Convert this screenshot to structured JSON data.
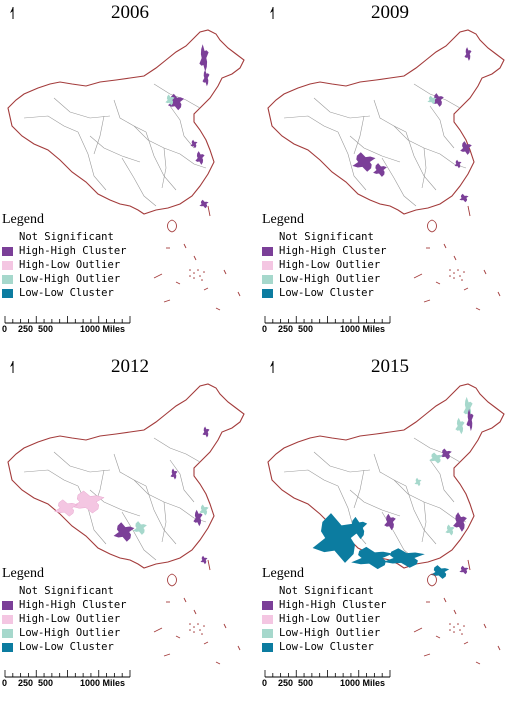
{
  "panels": [
    {
      "year": "2006"
    },
    {
      "year": "2009"
    },
    {
      "year": "2012"
    },
    {
      "year": "2015"
    }
  ],
  "north_label": "N",
  "legend": {
    "title": "Legend",
    "items": [
      {
        "label": "Not Significant",
        "color": "#ffffff"
      },
      {
        "label": "High-High Cluster",
        "color": "#7b3f98"
      },
      {
        "label": "High-Low Outlier",
        "color": "#f4c6e2"
      },
      {
        "label": "Low-High Outlier",
        "color": "#a6d8cc"
      },
      {
        "label": "Low-Low Cluster",
        "color": "#0c7ca0"
      }
    ]
  },
  "scale_bar": {
    "ticks": [
      "0",
      "250",
      "500",
      "1000 Miles"
    ]
  },
  "colors": {
    "boundary": "#a33b3b",
    "province": "#9a9a9a"
  }
}
